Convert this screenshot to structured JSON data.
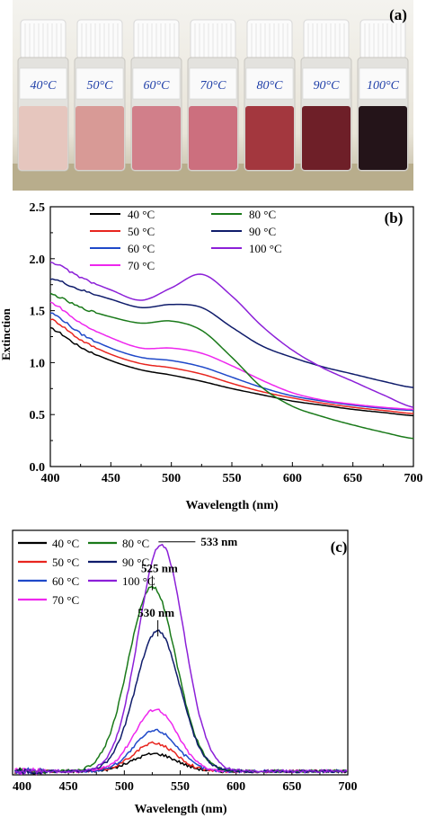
{
  "panel_a": {
    "label": "(a)",
    "vials": [
      {
        "label": "40°C",
        "liquid": "#e6c6be"
      },
      {
        "label": "50°C",
        "liquid": "#d89a96"
      },
      {
        "label": "60°C",
        "liquid": "#d17f8a"
      },
      {
        "label": "70°C",
        "liquid": "#cc6f7e"
      },
      {
        "label": "80°C",
        "liquid": "#a3373e"
      },
      {
        "label": "90°C",
        "liquid": "#6e1f28"
      },
      {
        "label": "100°C",
        "liquid": "#241419"
      }
    ]
  },
  "colors": {
    "40": "#000000",
    "50": "#e8251f",
    "60": "#1f49c9",
    "70": "#ee27ee",
    "80": "#1a7a1a",
    "90": "#0f1c6b",
    "100": "#8c20d8"
  },
  "chart_data": [
    {
      "type": "line",
      "panel_label": "(b)",
      "xlabel": "Wavelength (nm)",
      "ylabel": "Extinction",
      "xlim": [
        400,
        700
      ],
      "ylim": [
        0.0,
        2.5
      ],
      "xticks": [
        "400",
        "450",
        "500",
        "550",
        "600",
        "650",
        "700"
      ],
      "yticks": [
        "0.0",
        "0.5",
        "1.0",
        "1.5",
        "2.0",
        "2.5"
      ],
      "legend_position": "top-left, two columns",
      "x": [
        400,
        425,
        450,
        475,
        500,
        525,
        550,
        575,
        600,
        625,
        650,
        675,
        700
      ],
      "series": [
        {
          "name": "40 °C",
          "key": "40",
          "values": [
            1.33,
            1.15,
            1.02,
            0.93,
            0.88,
            0.82,
            0.75,
            0.69,
            0.63,
            0.59,
            0.55,
            0.52,
            0.49
          ]
        },
        {
          "name": "50 °C",
          "key": "50",
          "values": [
            1.42,
            1.22,
            1.08,
            0.99,
            0.95,
            0.89,
            0.8,
            0.72,
            0.66,
            0.61,
            0.57,
            0.54,
            0.51
          ]
        },
        {
          "name": "60 °C",
          "key": "60",
          "values": [
            1.48,
            1.28,
            1.14,
            1.05,
            1.02,
            0.96,
            0.86,
            0.76,
            0.68,
            0.63,
            0.59,
            0.56,
            0.54
          ]
        },
        {
          "name": "70 °C",
          "key": "70",
          "values": [
            1.58,
            1.38,
            1.24,
            1.14,
            1.14,
            1.09,
            0.97,
            0.83,
            0.71,
            0.64,
            0.6,
            0.57,
            0.55
          ]
        },
        {
          "name": "80 °C",
          "key": "80",
          "values": [
            1.66,
            1.53,
            1.44,
            1.38,
            1.4,
            1.31,
            1.05,
            0.76,
            0.58,
            0.48,
            0.4,
            0.33,
            0.27
          ]
        },
        {
          "name": "90 °C",
          "key": "90",
          "values": [
            1.81,
            1.7,
            1.61,
            1.53,
            1.56,
            1.53,
            1.34,
            1.16,
            1.05,
            0.96,
            0.89,
            0.82,
            0.76
          ]
        },
        {
          "name": "100 °C",
          "key": "100",
          "values": [
            1.97,
            1.82,
            1.7,
            1.6,
            1.72,
            1.85,
            1.64,
            1.35,
            1.12,
            0.95,
            0.82,
            0.69,
            0.57
          ]
        }
      ]
    },
    {
      "type": "line",
      "panel_label": "(c)",
      "xlabel": "Wavelength (nm)",
      "ylabel": "",
      "xlim": [
        400,
        700
      ],
      "ylim": [
        0,
        1.0
      ],
      "xticks": [
        "400",
        "450",
        "500",
        "550",
        "600",
        "650",
        "700"
      ],
      "legend_position": "top-left, two columns",
      "series": [
        {
          "name": "40 °C",
          "key": "40",
          "peak_x": 527,
          "peak_y": 0.075,
          "width": 28
        },
        {
          "name": "50 °C",
          "key": "50",
          "peak_x": 527,
          "peak_y": 0.12,
          "width": 27
        },
        {
          "name": "60 °C",
          "key": "60",
          "peak_x": 528,
          "peak_y": 0.175,
          "width": 27
        },
        {
          "name": "70 °C",
          "key": "70",
          "peak_x": 528,
          "peak_y": 0.265,
          "width": 27
        },
        {
          "name": "80 °C",
          "key": "80",
          "peak_x": 525,
          "peak_y": 0.79,
          "width": 30
        },
        {
          "name": "90 °C",
          "key": "90",
          "peak_x": 530,
          "peak_y": 0.6,
          "width": 28
        },
        {
          "name": "100 °C",
          "key": "100",
          "peak_x": 533,
          "peak_y": 0.97,
          "width": 29
        }
      ],
      "annotations": [
        {
          "text": "533 nm",
          "x": 533
        },
        {
          "text": "525 nm",
          "x": 525
        },
        {
          "text": "530 nm",
          "x": 530
        }
      ]
    }
  ]
}
